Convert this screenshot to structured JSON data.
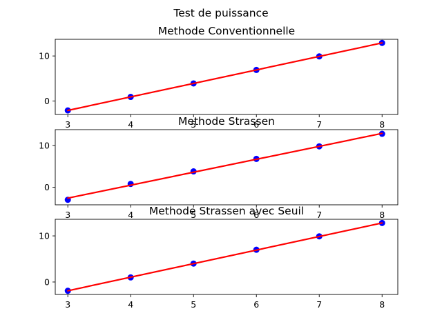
{
  "figure": {
    "suptitle": "Test de puissance",
    "point_color": "#0000ff",
    "line_color": "#ff0000"
  },
  "chart_data": [
    {
      "type": "scatter",
      "title": "Methode Conventionnelle",
      "xlabel": "",
      "ylabel": "",
      "xlim": [
        2.8,
        8.25
      ],
      "ylim": [
        -3.0,
        13.7
      ],
      "xticks": [
        3,
        4,
        5,
        6,
        7,
        8
      ],
      "yticks": [
        0,
        10
      ],
      "points": {
        "x": [
          3,
          4,
          5,
          6,
          7,
          8
        ],
        "y": [
          -2.1,
          0.9,
          3.9,
          6.9,
          9.9,
          12.9
        ]
      },
      "fit_line": {
        "x": [
          3,
          8
        ],
        "y": [
          -2.1,
          12.9
        ]
      }
    },
    {
      "type": "scatter",
      "title": "Methode Strassen",
      "xlabel": "",
      "ylabel": "",
      "xlim": [
        2.8,
        8.25
      ],
      "ylim": [
        -4.2,
        13.8
      ],
      "xticks": [
        3,
        4,
        5,
        6,
        7,
        8
      ],
      "yticks": [
        0,
        10
      ],
      "points": {
        "x": [
          3,
          4,
          5,
          6,
          7,
          8
        ],
        "y": [
          -3.0,
          0.8,
          3.8,
          6.8,
          9.8,
          12.8
        ]
      },
      "fit_line": {
        "x": [
          3,
          8
        ],
        "y": [
          -2.6,
          12.9
        ]
      }
    },
    {
      "type": "scatter",
      "title": "Methode Strassen avec Seuil",
      "xlabel": "",
      "ylabel": "",
      "xlim": [
        2.8,
        8.25
      ],
      "ylim": [
        -2.7,
        13.6
      ],
      "xticks": [
        3,
        4,
        5,
        6,
        7,
        8
      ],
      "yticks": [
        0,
        10
      ],
      "points": {
        "x": [
          3,
          4,
          5,
          6,
          7,
          8
        ],
        "y": [
          -1.9,
          1.0,
          4.0,
          7.0,
          9.9,
          12.8
        ]
      },
      "fit_line": {
        "x": [
          3,
          8
        ],
        "y": [
          -1.9,
          12.8
        ]
      }
    }
  ]
}
